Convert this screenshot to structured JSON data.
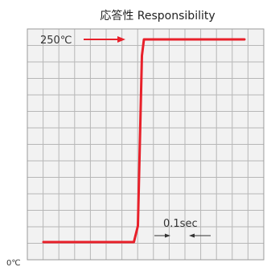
{
  "chart_data": {
    "type": "line",
    "title": "応答性 Responsibility",
    "ylabel_bottom": "0℃",
    "top_annotation": "250℃",
    "interval_annotation": "0.1sec",
    "grid": true,
    "series": [
      {
        "values_description_free": true,
        "x": [
          0,
          4.5,
          4.7,
          4.9,
          5.0,
          10.0
        ],
        "y": [
          0,
          0,
          20,
          230,
          250,
          250
        ]
      }
    ],
    "colors": {
      "line": "#e8202a",
      "grid": "#b7b7b7",
      "arrow": "#e8202a",
      "tick_arrow": "#333333"
    }
  }
}
